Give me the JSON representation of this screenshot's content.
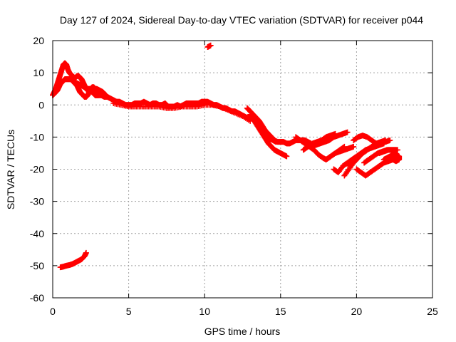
{
  "chart_data": {
    "type": "scatter",
    "title": "Day 127 of 2024, Sidereal Day-to-day VTEC variation (SDTVAR) for receiver p044",
    "xlabel": "GPS time / hours",
    "ylabel": "SDTVAR / TECUs",
    "xlim": [
      0,
      25
    ],
    "ylim": [
      -60,
      20
    ],
    "xticks": [
      0,
      5,
      10,
      15,
      20,
      25
    ],
    "yticks": [
      20,
      10,
      0,
      -10,
      -20,
      -30,
      -40,
      -50,
      -60
    ],
    "grid": true,
    "marker": "+",
    "color": "#ff0000",
    "series": [
      {
        "name": "early-high",
        "x": [
          0.0,
          0.1,
          0.2,
          0.3,
          0.4,
          0.5,
          0.6,
          0.7,
          0.8,
          0.9,
          1.0,
          1.1,
          1.2,
          1.3,
          1.4,
          1.5,
          1.6,
          1.7,
          1.8,
          1.9,
          2.0,
          2.1,
          2.2,
          2.3,
          2.4,
          2.5,
          2.6,
          2.7,
          2.8,
          2.9,
          3.0
        ],
        "y": [
          3,
          4,
          5,
          6.5,
          8,
          9.5,
          11,
          12.5,
          13,
          12.5,
          11,
          10,
          9.5,
          9,
          8.5,
          8.5,
          9,
          9,
          8.5,
          8,
          7,
          6,
          5,
          4.5,
          4.5,
          4.5,
          4,
          3.5,
          3,
          3,
          3
        ]
      },
      {
        "name": "early-low",
        "x": [
          0.0,
          0.1,
          0.2,
          0.3,
          0.4,
          0.5,
          0.6,
          0.7,
          0.8,
          0.9,
          1.0,
          1.1,
          1.2,
          1.3,
          1.4,
          1.5,
          1.6,
          1.7,
          1.8,
          1.9,
          2.0,
          2.1,
          2.2,
          2.3,
          2.4,
          2.5,
          2.6,
          2.7,
          2.8,
          2.9,
          3.0,
          3.1,
          3.2,
          3.3
        ],
        "y": [
          3,
          3.5,
          4,
          4.5,
          5.5,
          6.5,
          7,
          7.5,
          8,
          8,
          8,
          8,
          8,
          7.5,
          7,
          6.5,
          6,
          5,
          4,
          3.5,
          3,
          2.5,
          2.5,
          3,
          4,
          5,
          5.5,
          5.5,
          5,
          4.5,
          4,
          3.5,
          3,
          3
        ]
      },
      {
        "name": "early-mid",
        "x": [
          1.5,
          1.7,
          1.9,
          2.1,
          2.3,
          2.5,
          2.7,
          2.9,
          3.1,
          3.3,
          3.5
        ],
        "y": [
          7,
          6.5,
          6,
          5.5,
          5,
          5,
          5,
          5,
          4.5,
          4,
          3
        ]
      },
      {
        "name": "plateau",
        "x": [
          3.0,
          3.2,
          3.4,
          3.6,
          3.8,
          4.0,
          4.2,
          4.4,
          4.6,
          4.8,
          5.0,
          5.2,
          5.4,
          5.6,
          5.8,
          6.0,
          6.2,
          6.4,
          6.6,
          6.8,
          7.0,
          7.2,
          7.4,
          7.6,
          7.8,
          8.0,
          8.2,
          8.4,
          8.6,
          8.8,
          9.0,
          9.2,
          9.4,
          9.6,
          9.8,
          10.0,
          10.2,
          10.4,
          10.6,
          10.8,
          11.0,
          11.2,
          11.4,
          11.6,
          11.8,
          12.0,
          12.2,
          12.4,
          12.6,
          12.8,
          13.0
        ],
        "y": [
          3,
          3,
          2.5,
          2.5,
          2,
          1.5,
          1,
          1,
          0.5,
          0,
          0,
          0,
          0.5,
          0.5,
          0.5,
          1,
          0.5,
          0,
          0.5,
          0.5,
          0,
          0,
          0.5,
          -0.5,
          -0.5,
          -0.5,
          0,
          -0.5,
          0,
          0.5,
          0.5,
          0.5,
          0.5,
          0.5,
          1,
          1,
          1,
          0.5,
          0,
          0,
          -0.5,
          -1,
          -1,
          -1.5,
          -2,
          -2,
          -2.5,
          -3,
          -3.5,
          -4,
          -4.5
        ]
      },
      {
        "name": "plateau-low",
        "x": [
          4.0,
          4.5,
          5.0,
          5.5,
          6.0,
          6.5,
          7.0,
          7.5,
          8.0,
          8.5,
          9.0,
          9.5,
          10.0,
          10.5,
          11.0,
          11.5,
          12.0,
          12.5,
          13.0
        ],
        "y": [
          0.5,
          0,
          -0.5,
          -0.5,
          -0.5,
          -0.5,
          -0.5,
          -1,
          -1,
          -0.5,
          -0.5,
          -0.5,
          0,
          0,
          -0.5,
          -1.5,
          -2.5,
          -3.5,
          -5
        ]
      },
      {
        "name": "decline-upper",
        "x": [
          12.8,
          13.0,
          13.2,
          13.4,
          13.6,
          13.8,
          14.0,
          14.2,
          14.4,
          14.6,
          14.8,
          15.0,
          15.2,
          15.4,
          15.6,
          15.8,
          16.0,
          16.2,
          16.4,
          16.6,
          16.8,
          17.0
        ],
        "y": [
          -1,
          -2,
          -3,
          -4,
          -5,
          -6.5,
          -8,
          -9,
          -10,
          -11,
          -11.5,
          -11.5,
          -11.5,
          -12,
          -12,
          -11.5,
          -11,
          -11,
          -11,
          -11,
          -11.5,
          -12
        ]
      },
      {
        "name": "decline-lower",
        "x": [
          13.0,
          13.2,
          13.4,
          13.6,
          13.8,
          14.0,
          14.2,
          14.4,
          14.6,
          14.8,
          15.0,
          15.2,
          15.4
        ],
        "y": [
          -3,
          -4.5,
          -6,
          -7.5,
          -9,
          -10.5,
          -12,
          -13,
          -14,
          -14.5,
          -15,
          -15.5,
          -16
        ]
      },
      {
        "name": "decline-mid",
        "x": [
          13.5,
          13.7,
          13.9,
          14.1,
          14.3,
          14.5,
          14.7
        ],
        "y": [
          -5,
          -6.5,
          -8,
          -9.5,
          -10.5,
          -11,
          -11.5
        ]
      },
      {
        "name": "mid-right",
        "x": [
          16.0,
          16.3,
          16.6,
          16.9,
          17.2,
          17.5,
          17.8,
          18.0,
          18.3,
          18.6,
          18.9,
          19.2
        ],
        "y": [
          -10,
          -11,
          -12,
          -13,
          -14,
          -15.5,
          -16.5,
          -17,
          -16,
          -15,
          -14,
          -13
        ]
      },
      {
        "name": "branch-a",
        "x": [
          16.5,
          16.8,
          17.1,
          17.4,
          17.7,
          18.0,
          18.3,
          18.6
        ],
        "y": [
          -14,
          -13,
          -12,
          -11.5,
          -11,
          -10,
          -9.5,
          -9
        ]
      },
      {
        "name": "branch-b",
        "x": [
          17.0,
          17.3,
          17.6,
          17.9,
          18.2,
          18.5,
          18.8,
          19.1,
          19.4
        ],
        "y": [
          -13,
          -12.5,
          -12,
          -11.5,
          -11,
          -10,
          -9.5,
          -9,
          -8.5
        ]
      },
      {
        "name": "branch-c",
        "x": [
          18.0,
          18.3,
          18.6,
          18.9,
          19.2,
          19.5,
          19.8
        ],
        "y": [
          -17,
          -16,
          -15,
          -14.5,
          -14,
          -13.5,
          -13
        ]
      },
      {
        "name": "branch-d",
        "x": [
          18.5,
          18.8,
          19.1,
          19.4,
          19.7,
          20.0,
          20.3,
          20.6,
          20.9,
          21.2,
          21.5,
          21.8
        ],
        "y": [
          -20,
          -21,
          -19,
          -18,
          -17,
          -16,
          -15,
          -14,
          -13.5,
          -13,
          -12.5,
          -12
        ]
      },
      {
        "name": "branch-e",
        "x": [
          19.2,
          19.5,
          19.8,
          20.1,
          20.4,
          20.7,
          21.0,
          21.3,
          21.6,
          21.9,
          22.2
        ],
        "y": [
          -22,
          -20,
          -18,
          -16.5,
          -15,
          -14,
          -13,
          -12.5,
          -12,
          -11.5,
          -11
        ]
      },
      {
        "name": "branch-f",
        "x": [
          19.5,
          19.8,
          20.1,
          20.4,
          20.7,
          21.0,
          21.3,
          21.6,
          21.9
        ],
        "y": [
          -19,
          -17.5,
          -16,
          -15,
          -14,
          -13,
          -12,
          -11.5,
          -11
        ]
      },
      {
        "name": "branch-g",
        "x": [
          20.0,
          20.3,
          20.6,
          20.9,
          21.2,
          21.5,
          21.8,
          22.1,
          22.4,
          22.7
        ],
        "y": [
          -20,
          -21,
          -22,
          -21,
          -20,
          -19,
          -18,
          -17.5,
          -17,
          -16.5
        ]
      },
      {
        "name": "branch-h",
        "x": [
          19.8,
          20.1,
          20.4,
          20.7,
          21.0,
          21.3
        ],
        "y": [
          -11,
          -10,
          -9.5,
          -10,
          -11,
          -12
        ]
      },
      {
        "name": "branch-i",
        "x": [
          20.5,
          20.8,
          21.1,
          21.4,
          21.7,
          22.0,
          22.3,
          22.6
        ],
        "y": [
          -18,
          -17,
          -16,
          -15,
          -14.5,
          -14,
          -14,
          -14
        ]
      },
      {
        "name": "tail",
        "x": [
          21.8,
          22.0,
          22.2,
          22.4,
          22.6,
          22.8,
          22.8,
          22.6,
          22.4,
          22.2
        ],
        "y": [
          -17,
          -16.5,
          -16,
          -15.5,
          -15.5,
          -16,
          -17,
          -17.5,
          -17,
          -16.5
        ]
      },
      {
        "name": "tail-upper",
        "x": [
          21.5,
          21.8,
          22.1,
          22.4,
          22.7
        ],
        "y": [
          -15,
          -14.5,
          -14,
          -14,
          -14
        ]
      },
      {
        "name": "outlier-low",
        "x": [
          0.5,
          0.7,
          0.9,
          1.1,
          1.3,
          1.5,
          1.7,
          1.9,
          2.1,
          2.2
        ],
        "y": [
          -50.5,
          -50.3,
          -50,
          -49.8,
          -49.5,
          -49,
          -48.5,
          -48,
          -47,
          -46
        ]
      },
      {
        "name": "outlier-high",
        "x": [
          10.2,
          10.4
        ],
        "y": [
          18,
          18.5
        ]
      }
    ]
  }
}
